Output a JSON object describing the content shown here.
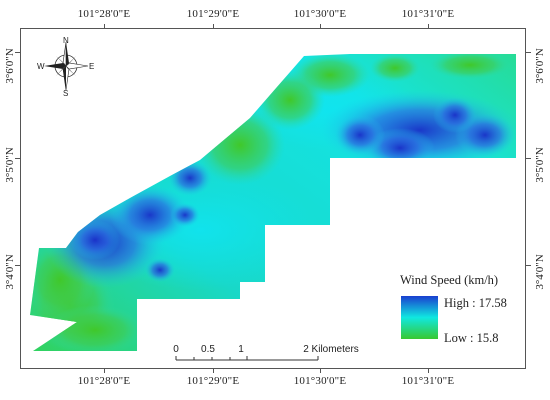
{
  "axes": {
    "top_ticks": [
      "101°28'0\"E",
      "101°29'0\"E",
      "101°30'0\"E",
      "101°31'0\"E"
    ],
    "bottom_ticks": [
      "101°28'0\"E",
      "101°29'0\"E",
      "101°30'0\"E",
      "101°31'0\"E"
    ],
    "left_ticks": [
      "3°6'0\"N",
      "3°5'0\"N",
      "3°4'0\"N"
    ],
    "right_ticks": [
      "3°6'0\"N",
      "3°5'0\"N",
      "3°4'0\"N"
    ]
  },
  "north_arrow": {
    "icon": "compass-rose-icon",
    "n": "N",
    "s": "S",
    "e": "E",
    "w": "W"
  },
  "scale_bar": {
    "labels": [
      "0",
      "0.5",
      "1",
      "2 Kilometers"
    ]
  },
  "legend": {
    "title": "Wind Speed (km/h)",
    "high_label": "High : 17.58",
    "low_label": "Low : 15.8",
    "colors": {
      "high": "#1a3fd0",
      "mid": "#10e8e0",
      "low": "#38c830"
    }
  }
}
